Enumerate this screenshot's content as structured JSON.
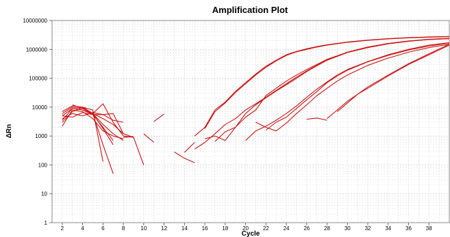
{
  "chart_data": {
    "type": "line",
    "title": "Amplification Plot",
    "xlabel": "Cycle",
    "ylabel": "ΔRn",
    "xlim": [
      1,
      40
    ],
    "ylim": [
      1,
      10000000
    ],
    "yscale": "log",
    "grid": true,
    "line_color": "#cc1111",
    "x_ticks": [
      "2",
      "4",
      "6",
      "8",
      "10",
      "12",
      "14",
      "16",
      "18",
      "20",
      "22",
      "24",
      "26",
      "28",
      "30",
      "32",
      "34",
      "36",
      "38"
    ],
    "y_ticks": [
      "1",
      "10",
      "100",
      "1000",
      "10000",
      "100000",
      "1000000",
      "10000000"
    ],
    "series": [
      {
        "x": [
          2,
          3,
          4,
          5,
          6,
          7
        ],
        "y": [
          5000,
          9000,
          8000,
          5500,
          2000,
          700
        ]
      },
      {
        "x": [
          2,
          3,
          4,
          5,
          6,
          7
        ],
        "y": [
          3000,
          7000,
          9500,
          6000,
          1800,
          500
        ]
      },
      {
        "x": [
          2,
          3,
          4,
          5,
          6,
          7,
          8
        ],
        "y": [
          2200,
          8000,
          7000,
          4000,
          1500,
          1000,
          800
        ]
      },
      {
        "x": [
          2,
          3,
          4,
          5,
          6,
          7,
          8
        ],
        "y": [
          6000,
          10000,
          9000,
          6000,
          2500,
          1200,
          700
        ]
      },
      {
        "x": [
          2,
          3,
          4,
          5,
          6,
          7,
          8
        ],
        "y": [
          4000,
          6000,
          5000,
          6500,
          5500,
          3500,
          3000
        ]
      },
      {
        "x": [
          2,
          3,
          4,
          5,
          6
        ],
        "y": [
          7000,
          11000,
          10000,
          8000,
          130
        ]
      },
      {
        "x": [
          2,
          3,
          4,
          5,
          6,
          7,
          8,
          9
        ],
        "y": [
          3500,
          9000,
          8000,
          6000,
          13000,
          3000,
          1000,
          900
        ]
      },
      {
        "x": [
          2,
          3,
          4,
          5,
          6,
          7,
          8
        ],
        "y": [
          5000,
          4500,
          6500,
          5500,
          5500,
          6000,
          1200
        ]
      },
      {
        "x": [
          3,
          4,
          5,
          6,
          7
        ],
        "y": [
          12000,
          9000,
          6000,
          500,
          50
        ]
      },
      {
        "x": [
          4,
          5,
          6,
          7,
          8,
          9,
          10
        ],
        "y": [
          10000,
          6000,
          4000,
          2500,
          1200,
          900,
          100
        ]
      },
      {
        "x": [
          8,
          9
        ],
        "y": [
          900,
          950
        ]
      },
      {
        "x": [
          10,
          11
        ],
        "y": [
          1200,
          600
        ]
      },
      {
        "x": [
          11,
          12
        ],
        "y": [
          3200,
          5800
        ]
      },
      {
        "x": [
          13,
          14,
          15
        ],
        "y": [
          280,
          170,
          120
        ]
      },
      {
        "x": [
          14,
          15
        ],
        "y": [
          270,
          600
        ]
      },
      {
        "x": [
          15,
          16,
          17,
          18,
          19,
          20,
          21,
          22,
          23,
          24,
          25,
          26,
          27,
          28,
          30,
          32,
          34,
          36,
          38,
          40
        ],
        "y": [
          1000,
          2000,
          8000,
          15000,
          35000,
          70000,
          140000,
          260000,
          420000,
          650000,
          850000,
          1050000,
          1250000,
          1450000,
          1800000,
          2100000,
          2350000,
          2550000,
          2700000,
          2800000
        ]
      },
      {
        "x": [
          16,
          17,
          18,
          19,
          20,
          21,
          22,
          23,
          24,
          25,
          26,
          27,
          28,
          30,
          32,
          34,
          36,
          38,
          40
        ],
        "y": [
          1800,
          7000,
          14000,
          32000,
          65000,
          130000,
          240000,
          400000,
          620000,
          820000,
          1000000,
          1200000,
          1400000,
          1750000,
          2050000,
          2300000,
          2500000,
          2650000,
          2750000
        ]
      },
      {
        "x": [
          15,
          16,
          17,
          18,
          19,
          20,
          21,
          22,
          23,
          24,
          25,
          26,
          27,
          28,
          30,
          32,
          34,
          36,
          38,
          40
        ],
        "y": [
          350,
          600,
          1200,
          2500,
          4000,
          8000,
          13000,
          22000,
          38000,
          65000,
          110000,
          180000,
          280000,
          430000,
          800000,
          1200000,
          1600000,
          1950000,
          2250000,
          2400000
        ]
      },
      {
        "x": [
          16,
          17,
          18,
          19,
          20,
          21,
          22,
          23,
          24,
          25,
          26,
          27,
          28,
          30,
          32,
          34,
          36,
          38,
          40
        ],
        "y": [
          800,
          1000,
          700,
          2000,
          6000,
          12000,
          21000,
          36000,
          60000,
          100000,
          170000,
          270000,
          420000,
          780000,
          1150000,
          1550000,
          1900000,
          2200000,
          2350000
        ]
      },
      {
        "x": [
          17,
          18,
          19,
          20,
          21,
          22,
          23,
          24,
          25,
          26,
          27,
          28,
          30,
          32,
          34,
          36,
          38,
          40
        ],
        "y": [
          650,
          1400,
          2000,
          4500,
          8000,
          25000,
          45000,
          80000,
          130000,
          200000,
          300000,
          450000,
          800000,
          1200000,
          1600000,
          1950000,
          2200000,
          2350000
        ]
      },
      {
        "x": [
          20,
          21,
          22,
          23,
          24,
          25,
          26,
          27,
          28,
          29,
          30,
          32,
          34,
          36,
          38,
          40
        ],
        "y": [
          700,
          1500,
          2200,
          3500,
          6000,
          11000,
          22000,
          42000,
          75000,
          130000,
          200000,
          380000,
          650000,
          1000000,
          1400000,
          1700000
        ]
      },
      {
        "x": [
          22,
          23,
          24,
          25,
          26,
          27,
          28,
          29,
          30,
          32,
          34,
          36,
          38,
          40
        ],
        "y": [
          1600,
          3000,
          4500,
          9000,
          18000,
          35000,
          70000,
          120000,
          190000,
          370000,
          620000,
          950000,
          1300000,
          1650000
        ]
      },
      {
        "x": [
          21,
          22,
          23,
          24,
          25,
          26,
          27,
          28,
          29,
          30,
          32,
          34,
          36,
          38,
          40
        ],
        "y": [
          3000,
          2000,
          1500,
          2800,
          6000,
          12000,
          25000,
          45000,
          80000,
          130000,
          280000,
          500000,
          800000,
          1150000,
          1500000
        ]
      },
      {
        "x": [
          26,
          27,
          28
        ],
        "y": [
          3800,
          4200,
          3500
        ]
      },
      {
        "x": [
          28,
          29,
          30,
          31,
          32,
          34,
          36,
          38,
          40
        ],
        "y": [
          4000,
          8000,
          16000,
          28000,
          45000,
          120000,
          300000,
          650000,
          1400000
        ]
      },
      {
        "x": [
          29,
          30,
          31,
          32,
          34,
          36,
          38,
          40
        ],
        "y": [
          7000,
          14000,
          28000,
          50000,
          130000,
          320000,
          700000,
          1500000
        ]
      }
    ]
  }
}
